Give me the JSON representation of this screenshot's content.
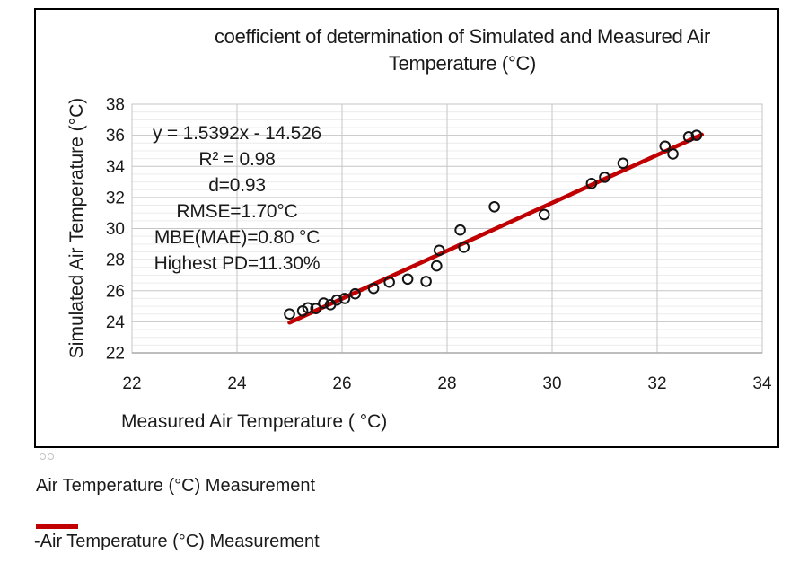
{
  "chart_data": {
    "type": "scatter",
    "title": "coefficient of determination of Simulated and Measured Air Temperature (°C)",
    "title_lines": [
      "coefficient of determination of Simulated and Measured Air",
      "Temperature (°C)"
    ],
    "xlabel": "Measured Air Temperature ( °C)",
    "ylabel": "Simulated Air Temperature (°C)",
    "xlim": [
      22,
      34
    ],
    "ylim": [
      22,
      38
    ],
    "x_ticks": [
      22,
      24,
      26,
      28,
      30,
      32,
      34
    ],
    "y_ticks": [
      22,
      24,
      26,
      28,
      30,
      32,
      34,
      36,
      38
    ],
    "y_minor_step": 0.5,
    "grid": {
      "major_color": "#c6c6c6",
      "minor_color": "#ececec",
      "axis_color": "#a9a9a9"
    },
    "annotations": [
      "y = 1.5392x - 14.526",
      "R² = 0.98",
      "d=0.93",
      "RMSE=1.70°C",
      "MBE(MAE)=0.80 °C",
      "Highest PD=11.30%"
    ],
    "series": [
      {
        "name": "Air Temperature (°C) Measurement",
        "kind": "scatter",
        "marker": "open-circle",
        "color": "#141414",
        "points": [
          [
            25.0,
            24.5
          ],
          [
            25.25,
            24.7
          ],
          [
            25.35,
            24.9
          ],
          [
            25.5,
            24.85
          ],
          [
            25.65,
            25.2
          ],
          [
            25.78,
            25.1
          ],
          [
            25.9,
            25.4
          ],
          [
            26.05,
            25.5
          ],
          [
            26.25,
            25.8
          ],
          [
            26.6,
            26.15
          ],
          [
            26.9,
            26.55
          ],
          [
            27.25,
            26.75
          ],
          [
            27.6,
            26.6
          ],
          [
            27.8,
            27.6
          ],
          [
            27.85,
            28.6
          ],
          [
            28.25,
            29.9
          ],
          [
            28.32,
            28.8
          ],
          [
            28.9,
            31.4
          ],
          [
            29.85,
            30.9
          ],
          [
            30.75,
            32.9
          ],
          [
            31.0,
            33.3
          ],
          [
            31.35,
            34.2
          ],
          [
            32.15,
            35.3
          ],
          [
            32.3,
            34.8
          ],
          [
            32.6,
            35.9
          ],
          [
            32.75,
            36.0
          ]
        ]
      },
      {
        "name": "-Air Temperature (°C) Measurement",
        "kind": "trendline",
        "color": "#c00000",
        "equation": "y = 1.5392x - 14.526",
        "r2": 0.98,
        "points": [
          [
            25.0,
            23.95
          ],
          [
            32.85,
            36.04
          ]
        ]
      }
    ]
  },
  "legend": {
    "scatter_label": "Air Temperature (°C) Measurement",
    "line_label": "-Air Temperature (°C) Measurement",
    "line_color": "#c00000"
  }
}
